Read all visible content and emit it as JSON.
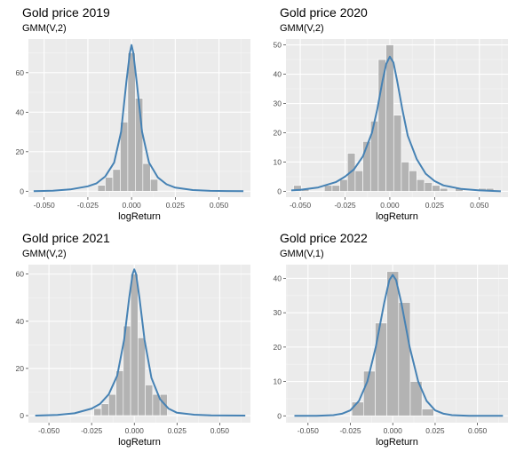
{
  "chart_data": [
    {
      "type": "bar",
      "title": "Gold price 2019",
      "subtitle": "GMM(V,2)",
      "xlabel": "logReturn",
      "ylabel": "",
      "xlim": [
        -0.059,
        0.068
      ],
      "ylim": [
        -3,
        77
      ],
      "x_ticks": [
        "-0.050",
        "-0.025",
        "0.000",
        "0.025",
        "0.050"
      ],
      "x_tick_values": [
        -0.05,
        -0.025,
        0,
        0.025,
        0.05
      ],
      "y_ticks": [
        "0",
        "20",
        "40",
        "60"
      ],
      "y_tick_values": [
        0,
        20,
        40,
        60
      ],
      "bar_width": 0.0043,
      "bar_centers": [
        -0.0172,
        -0.0129,
        -0.0086,
        -0.0043,
        0.0,
        0.0043,
        0.0086,
        0.0129
      ],
      "bar_heights": [
        3,
        7,
        11,
        35,
        70,
        47,
        14,
        6
      ],
      "curve": {
        "x": [
          -0.056,
          -0.045,
          -0.035,
          -0.025,
          -0.02,
          -0.015,
          -0.01,
          -0.006,
          -0.003,
          -0.001,
          0.0,
          0.001,
          0.003,
          0.006,
          0.01,
          0.015,
          0.02,
          0.025,
          0.035,
          0.045,
          0.064
        ],
        "y": [
          0,
          0.3,
          0.9,
          2.5,
          4,
          7.5,
          14.5,
          30,
          55,
          70,
          74,
          70,
          55,
          30,
          14.5,
          7,
          3.5,
          1.8,
          0.6,
          0.2,
          0
        ]
      },
      "grid": true
    },
    {
      "type": "bar",
      "title": "Gold price 2020",
      "subtitle": "GMM(V,2)",
      "xlabel": "logReturn",
      "ylabel": "",
      "xlim": [
        -0.058,
        0.066
      ],
      "ylim": [
        -2,
        52
      ],
      "x_ticks": [
        "-0.050",
        "-0.025",
        "0.000",
        "0.025",
        "0.050"
      ],
      "x_tick_values": [
        -0.05,
        -0.025,
        0,
        0.025,
        0.05
      ],
      "y_ticks": [
        "0",
        "10",
        "20",
        "30",
        "40",
        "50"
      ],
      "y_tick_values": [
        0,
        10,
        20,
        30,
        40,
        50
      ],
      "bar_width": 0.0043,
      "bar_centers": [
        -0.0516,
        -0.0473,
        -0.043,
        -0.0387,
        -0.0344,
        -0.0301,
        -0.0258,
        -0.0215,
        -0.0172,
        -0.0129,
        -0.0086,
        -0.0043,
        0.0,
        0.0043,
        0.0086,
        0.0129,
        0.0172,
        0.0215,
        0.0258,
        0.0301,
        0.0344,
        0.0387,
        0.043,
        0.0473,
        0.0516,
        0.0559
      ],
      "bar_heights": [
        2,
        1,
        0,
        0,
        2,
        2,
        4,
        13,
        7,
        17,
        24,
        45,
        50,
        26,
        10,
        7,
        4,
        3,
        2,
        1,
        0,
        1,
        0,
        0,
        1,
        1
      ],
      "curve": {
        "x": [
          -0.055,
          -0.05,
          -0.04,
          -0.03,
          -0.025,
          -0.02,
          -0.015,
          -0.01,
          -0.007,
          -0.004,
          -0.002,
          0.0,
          0.002,
          0.004,
          0.007,
          0.01,
          0.015,
          0.02,
          0.025,
          0.03,
          0.04,
          0.05,
          0.062
        ],
        "y": [
          0.3,
          0.5,
          1.3,
          3.2,
          5,
          7.5,
          12,
          20,
          28,
          38,
          43.5,
          46,
          44,
          38,
          28,
          19,
          11,
          6,
          3.5,
          2,
          0.8,
          0.3,
          0
        ]
      },
      "grid": true
    },
    {
      "type": "bar",
      "title": "Gold price 2021",
      "subtitle": "GMM(V,2)",
      "xlabel": "logReturn",
      "ylabel": "",
      "xlim": [
        -0.062,
        0.068
      ],
      "ylim": [
        -3,
        64
      ],
      "x_ticks": [
        "-0.050",
        "-0.025",
        "0.000",
        "0.025",
        "0.050"
      ],
      "x_tick_values": [
        -0.05,
        -0.025,
        0,
        0.025,
        0.05
      ],
      "y_ticks": [
        "0",
        "20",
        "40",
        "60"
      ],
      "y_tick_values": [
        0,
        20,
        40,
        60
      ],
      "bar_width": 0.0043,
      "bar_centers": [
        -0.0215,
        -0.0172,
        -0.0129,
        -0.0086,
        -0.0043,
        0.0,
        0.0043,
        0.0086,
        0.0129,
        0.0172
      ],
      "bar_heights": [
        3,
        5,
        9,
        19,
        38,
        60,
        33,
        13,
        9,
        9
      ],
      "curve": {
        "x": [
          -0.058,
          -0.045,
          -0.035,
          -0.025,
          -0.02,
          -0.015,
          -0.01,
          -0.006,
          -0.003,
          -0.001,
          0.0,
          0.001,
          0.003,
          0.006,
          0.01,
          0.015,
          0.02,
          0.025,
          0.035,
          0.045,
          0.065
        ],
        "y": [
          0,
          0.3,
          1,
          3,
          5,
          9,
          17,
          32,
          50,
          60,
          62,
          60,
          50,
          32,
          16,
          7,
          3,
          1.2,
          0.4,
          0.1,
          0
        ]
      },
      "grid": true
    },
    {
      "type": "bar",
      "title": "Gold price 2022",
      "subtitle": "GMM(V,1)",
      "xlabel": "logReturn",
      "ylabel": "",
      "xlim": [
        -0.063,
        0.068
      ],
      "ylim": [
        -2,
        44
      ],
      "x_ticks": [
        "-0.050",
        "-0.025",
        "0.000",
        "0.025",
        "0.050"
      ],
      "x_tick_values": [
        -0.05,
        -0.025,
        0,
        0.025,
        0.05
      ],
      "y_ticks": [
        "0",
        "10",
        "20",
        "30",
        "40"
      ],
      "y_tick_values": [
        0,
        10,
        20,
        30,
        40
      ],
      "bar_width": 0.0069,
      "bar_centers": [
        -0.0207,
        -0.0138,
        -0.0069,
        0.0,
        0.0069,
        0.0138,
        0.0207
      ],
      "bar_heights": [
        4,
        13,
        27,
        42,
        33,
        10,
        2
      ],
      "curve": {
        "x": [
          -0.058,
          -0.045,
          -0.035,
          -0.03,
          -0.025,
          -0.02,
          -0.015,
          -0.01,
          -0.005,
          -0.002,
          0.0,
          0.002,
          0.005,
          0.01,
          0.015,
          0.02,
          0.025,
          0.03,
          0.035,
          0.045,
          0.065
        ],
        "y": [
          0,
          0,
          0.2,
          0.6,
          1.6,
          4.3,
          10,
          20,
          33,
          39.5,
          41,
          39.5,
          33,
          20,
          10,
          4.3,
          1.6,
          0.6,
          0.2,
          0,
          0
        ]
      },
      "grid": true
    }
  ],
  "colors": {
    "panel_bg": "#ebebeb",
    "grid_major": "#ffffff",
    "bar": "#b3b3b3",
    "curve": "#4682b4",
    "tick_text": "#4d4d4d"
  }
}
